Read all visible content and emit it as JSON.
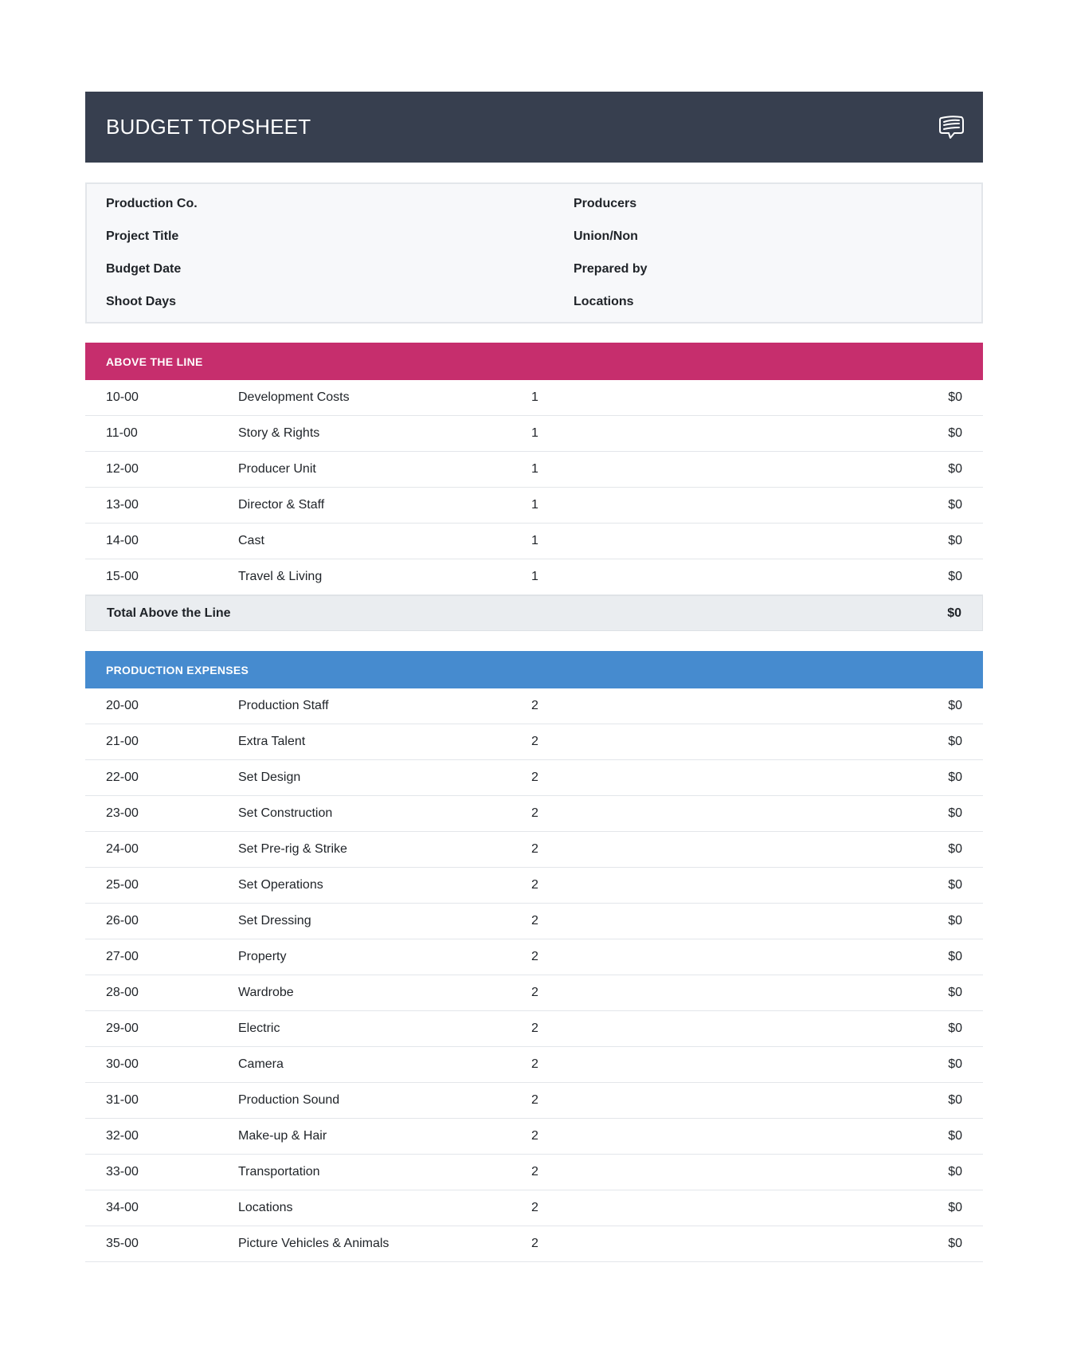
{
  "header": {
    "title": "BUDGET TOPSHEET",
    "icon": "chat-bubble-icon"
  },
  "info": {
    "left": [
      "Production Co.",
      "Project Title",
      "Budget Date",
      "Shoot Days"
    ],
    "right": [
      "Producers",
      "Union/Non",
      "Prepared by",
      "Locations"
    ]
  },
  "above_the_line": {
    "title": "ABOVE THE LINE",
    "color": "#c62e6d",
    "rows": [
      {
        "code": "10-00",
        "desc": "Development Costs",
        "qty": "1",
        "amount": "$0"
      },
      {
        "code": "11-00",
        "desc": "Story & Rights",
        "qty": "1",
        "amount": "$0"
      },
      {
        "code": "12-00",
        "desc": "Producer Unit",
        "qty": "1",
        "amount": "$0"
      },
      {
        "code": "13-00",
        "desc": "Director & Staff",
        "qty": "1",
        "amount": "$0"
      },
      {
        "code": "14-00",
        "desc": "Cast",
        "qty": "1",
        "amount": "$0"
      },
      {
        "code": "15-00",
        "desc": "Travel & Living",
        "qty": "1",
        "amount": "$0"
      }
    ],
    "total_label": "Total Above the Line",
    "total_amount": "$0"
  },
  "production_expenses": {
    "title": "PRODUCTION EXPENSES",
    "color": "#468bcf",
    "rows": [
      {
        "code": "20-00",
        "desc": "Production Staff",
        "qty": "2",
        "amount": "$0"
      },
      {
        "code": "21-00",
        "desc": "Extra Talent",
        "qty": "2",
        "amount": "$0"
      },
      {
        "code": "22-00",
        "desc": "Set Design",
        "qty": "2",
        "amount": "$0"
      },
      {
        "code": "23-00",
        "desc": "Set Construction",
        "qty": "2",
        "amount": "$0"
      },
      {
        "code": "24-00",
        "desc": "Set Pre-rig & Strike",
        "qty": "2",
        "amount": "$0"
      },
      {
        "code": "25-00",
        "desc": "Set Operations",
        "qty": "2",
        "amount": "$0"
      },
      {
        "code": "26-00",
        "desc": "Set Dressing",
        "qty": "2",
        "amount": "$0"
      },
      {
        "code": "27-00",
        "desc": "Property",
        "qty": "2",
        "amount": "$0"
      },
      {
        "code": "28-00",
        "desc": "Wardrobe",
        "qty": "2",
        "amount": "$0"
      },
      {
        "code": "29-00",
        "desc": "Electric",
        "qty": "2",
        "amount": "$0"
      },
      {
        "code": "30-00",
        "desc": "Camera",
        "qty": "2",
        "amount": "$0"
      },
      {
        "code": "31-00",
        "desc": "Production Sound",
        "qty": "2",
        "amount": "$0"
      },
      {
        "code": "32-00",
        "desc": "Make-up & Hair",
        "qty": "2",
        "amount": "$0"
      },
      {
        "code": "33-00",
        "desc": "Transportation",
        "qty": "2",
        "amount": "$0"
      },
      {
        "code": "34-00",
        "desc": "Locations",
        "qty": "2",
        "amount": "$0"
      },
      {
        "code": "35-00",
        "desc": "Picture Vehicles & Animals",
        "qty": "2",
        "amount": "$0"
      }
    ]
  }
}
